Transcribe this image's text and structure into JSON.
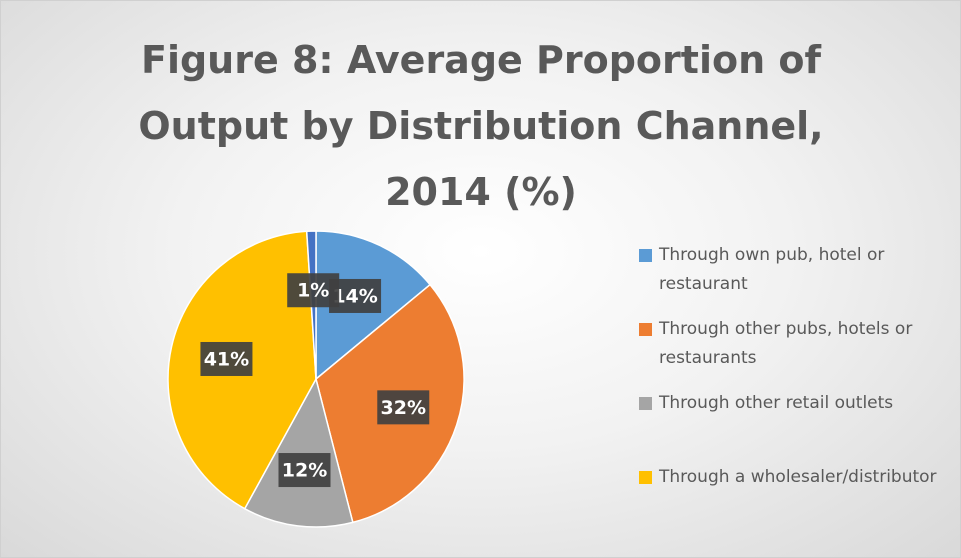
{
  "chart_data": {
    "type": "pie",
    "title": "Figure 8: Average Proportion of Output by Distribution Channel, 2014 (%)",
    "categories": [
      "Through own pub, hotel or restaurant",
      "Through other pubs, hotels or restaurants",
      "Through other retail outlets",
      "Through a wholesaler/distributor",
      null
    ],
    "values": [
      14,
      32,
      12,
      41,
      1
    ],
    "value_labels": [
      "14%",
      "32%",
      "12%",
      "41%",
      "1%"
    ],
    "colors": [
      "#5b9bd5",
      "#ed7d31",
      "#a5a5a5",
      "#ffc000",
      "#4472c4"
    ],
    "legend": "right"
  }
}
